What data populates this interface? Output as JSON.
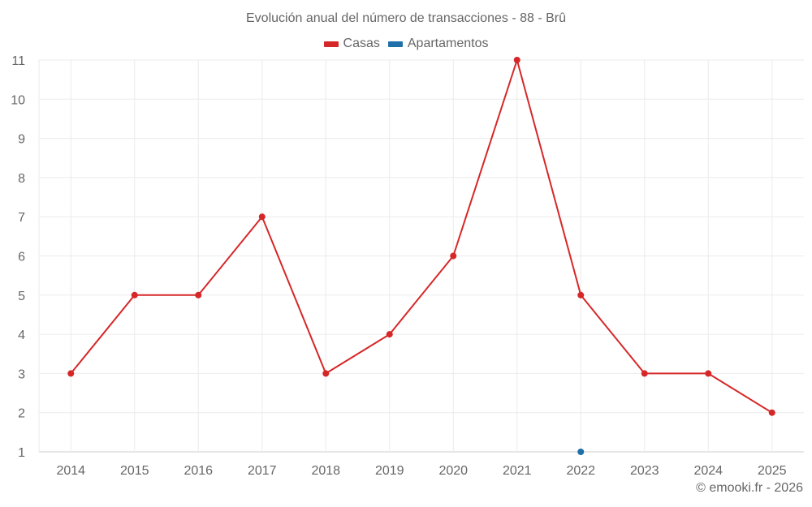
{
  "title": "Evolución anual del número de transacciones - 88 - Brû",
  "legend": [
    {
      "label": "Casas",
      "color": "#d62728"
    },
    {
      "label": "Apartamentos",
      "color": "#1f6fa8"
    }
  ],
  "credit": "© emooki.fr - 2026",
  "chart_data": {
    "type": "line",
    "title": "Evolución anual del número de transacciones - 88 - Brû",
    "xlabel": "",
    "ylabel": "",
    "categories": [
      "2014",
      "2015",
      "2016",
      "2017",
      "2018",
      "2019",
      "2020",
      "2021",
      "2022",
      "2023",
      "2024",
      "2025"
    ],
    "series": [
      {
        "name": "Casas",
        "color": "#d62728",
        "values": [
          3,
          5,
          5,
          7,
          3,
          4,
          6,
          11,
          5,
          3,
          3,
          2
        ]
      },
      {
        "name": "Apartamentos",
        "color": "#1f6fa8",
        "values": [
          null,
          null,
          null,
          null,
          null,
          null,
          null,
          null,
          1,
          null,
          null,
          null
        ]
      }
    ],
    "ylim": [
      1,
      11
    ],
    "yticks": [
      1,
      2,
      3,
      4,
      5,
      6,
      7,
      8,
      9,
      10,
      11
    ],
    "grid": true,
    "legend_position": "top"
  }
}
